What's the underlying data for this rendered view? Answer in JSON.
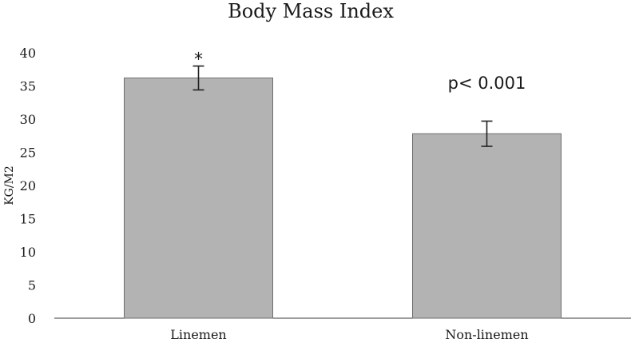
{
  "chart_data": {
    "type": "bar",
    "title": "Body Mass Index",
    "ylabel": "KG/M2",
    "xlabel": "",
    "categories": [
      "Linemen",
      "Non-linemen"
    ],
    "values": [
      36.2,
      27.8
    ],
    "error_bars": [
      1.8,
      1.9
    ],
    "ylim": [
      0,
      40
    ],
    "y_ticks": [
      "0",
      "5",
      "10",
      "15",
      "20",
      "25",
      "30",
      "35",
      "40"
    ],
    "grid": false,
    "annotations": {
      "linemen_marker": "*",
      "p_value": "p< 0.001"
    },
    "colors": {
      "bar_fill": "#b3b3b3",
      "bar_stroke": "#6e6e6e",
      "axis": "#3a3a3a",
      "text": "#1a1a1a"
    }
  }
}
